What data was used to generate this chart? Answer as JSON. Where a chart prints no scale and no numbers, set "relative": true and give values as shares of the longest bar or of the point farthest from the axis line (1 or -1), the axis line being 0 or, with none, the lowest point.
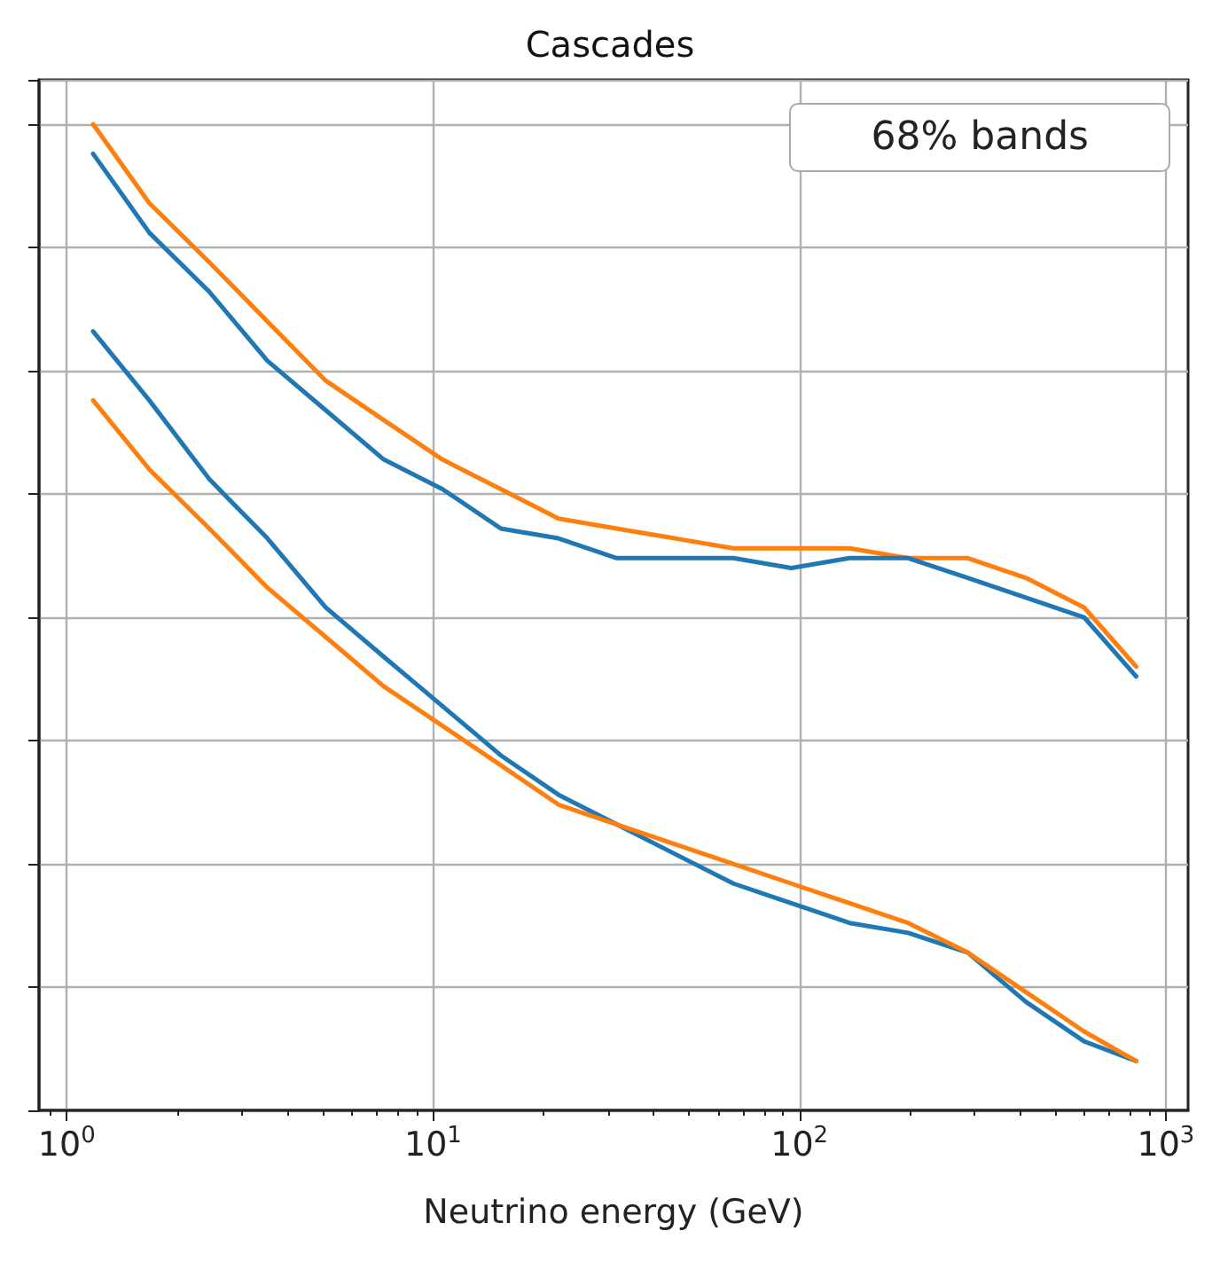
{
  "chart_data": {
    "type": "line",
    "title": "Cascades",
    "xlabel": "Neutrino energy (GeV)",
    "relative": true,
    "log": "x",
    "grid": true,
    "tick_labels": "x",
    "line_style": "solid",
    "marker": "none",
    "annotations": [
      "68% bands"
    ],
    "xlim": [
      0.84,
      1150
    ],
    "xticks": [
      {
        "value": 1,
        "label": "10$^{0}$"
      },
      {
        "value": 10,
        "label": "10$^{1}$"
      },
      {
        "value": 100,
        "label": "10$^{2}$"
      },
      {
        "value": 1000,
        "label": "10$^{3}$"
      }
    ],
    "x": [
      1.18,
      1.68,
      2.45,
      3.53,
      5.09,
      7.33,
      10.6,
      15.3,
      22,
      31.7,
      45.7,
      66,
      95,
      137,
      198,
      288,
      415,
      598,
      830
    ],
    "series": [
      {
        "color": "#ff7f0e",
        "values": [
          1.0,
          0.92,
          0.86,
          0.8,
          0.74,
          0.7,
          0.66,
          0.63,
          0.6,
          0.59,
          0.58,
          0.57,
          0.57,
          0.57,
          0.56,
          0.56,
          0.54,
          0.51,
          0.45
        ]
      },
      {
        "color": "#1f77b4",
        "values": [
          0.97,
          0.89,
          0.83,
          0.76,
          0.71,
          0.66,
          0.63,
          0.59,
          0.58,
          0.56,
          0.56,
          0.56,
          0.55,
          0.56,
          0.56,
          0.54,
          0.52,
          0.5,
          0.44
        ]
      },
      {
        "color": "#1f77b4",
        "values": [
          0.79,
          0.72,
          0.64,
          0.58,
          0.51,
          0.46,
          0.41,
          0.36,
          0.32,
          0.29,
          0.26,
          0.23,
          0.21,
          0.19,
          0.18,
          0.16,
          0.11,
          0.07,
          0.05
        ]
      },
      {
        "color": "#ff7f0e",
        "values": [
          0.72,
          0.65,
          0.59,
          0.53,
          0.48,
          0.43,
          0.39,
          0.35,
          0.31,
          0.29,
          0.27,
          0.25,
          0.23,
          0.21,
          0.19,
          0.16,
          0.12,
          0.08,
          0.05
        ]
      }
    ]
  }
}
